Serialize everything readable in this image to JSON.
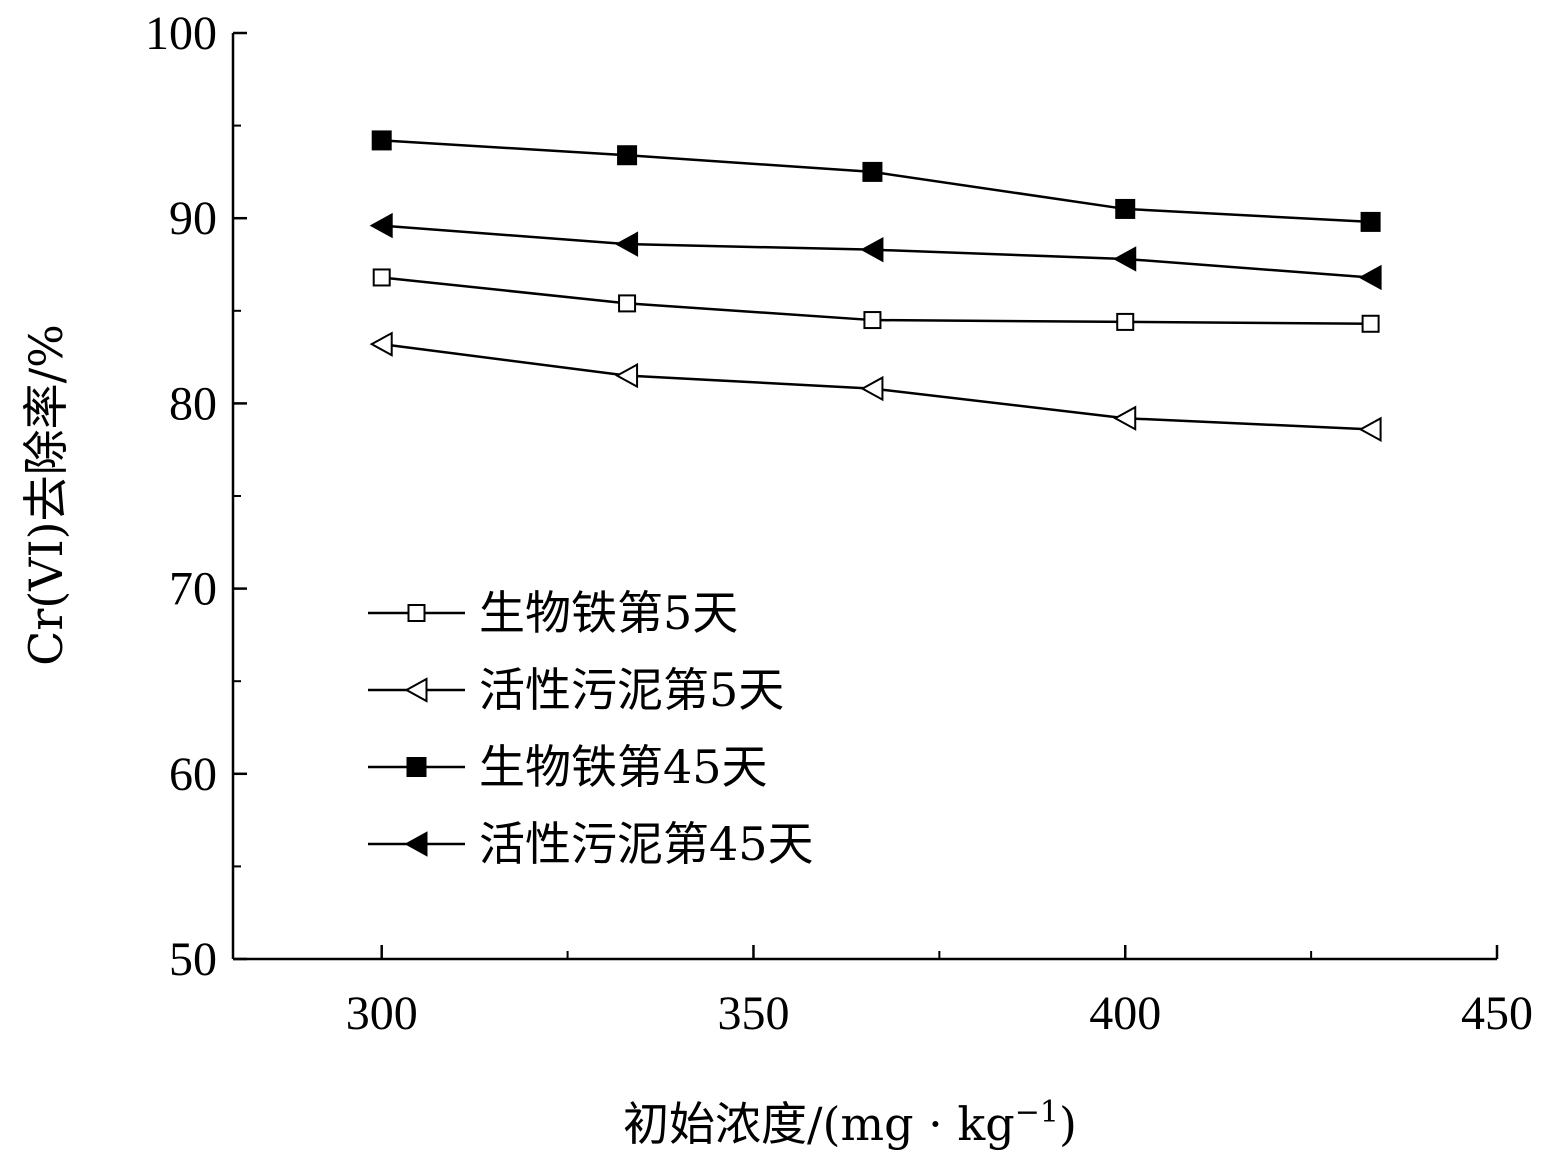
{
  "chart_data": {
    "type": "line",
    "title": "",
    "xlabel": "初始浓度/(mg · kg",
    "xlabel_sup": "−1",
    "xlabel_end": ")",
    "ylabel": "Cr(VI)去除率/%",
    "xlim": [
      280,
      450
    ],
    "ylim": [
      50,
      100
    ],
    "xticks": [
      300,
      350,
      400,
      450
    ],
    "yticks": [
      50,
      60,
      70,
      80,
      90,
      100
    ],
    "x": [
      300,
      333,
      366,
      400,
      433
    ],
    "series": [
      {
        "name": "生物铁第5天",
        "marker": "square-open",
        "values": [
          86.8,
          85.4,
          84.5,
          84.4,
          84.3
        ]
      },
      {
        "name": "活性污泥第5天",
        "marker": "triangle-open",
        "values": [
          83.2,
          81.5,
          80.8,
          79.2,
          78.6
        ]
      },
      {
        "name": "生物铁第45天",
        "marker": "square-filled",
        "values": [
          94.2,
          93.4,
          92.5,
          90.5,
          89.8
        ]
      },
      {
        "name": "活性污泥第45天",
        "marker": "triangle-filled",
        "values": [
          89.6,
          88.6,
          88.3,
          87.8,
          86.8
        ]
      }
    ],
    "grid": false,
    "legend_position": "lower-left",
    "colors": {
      "line": "#000000",
      "marker_open_fill": "#ffffff",
      "marker_filled_fill": "#000000"
    }
  }
}
